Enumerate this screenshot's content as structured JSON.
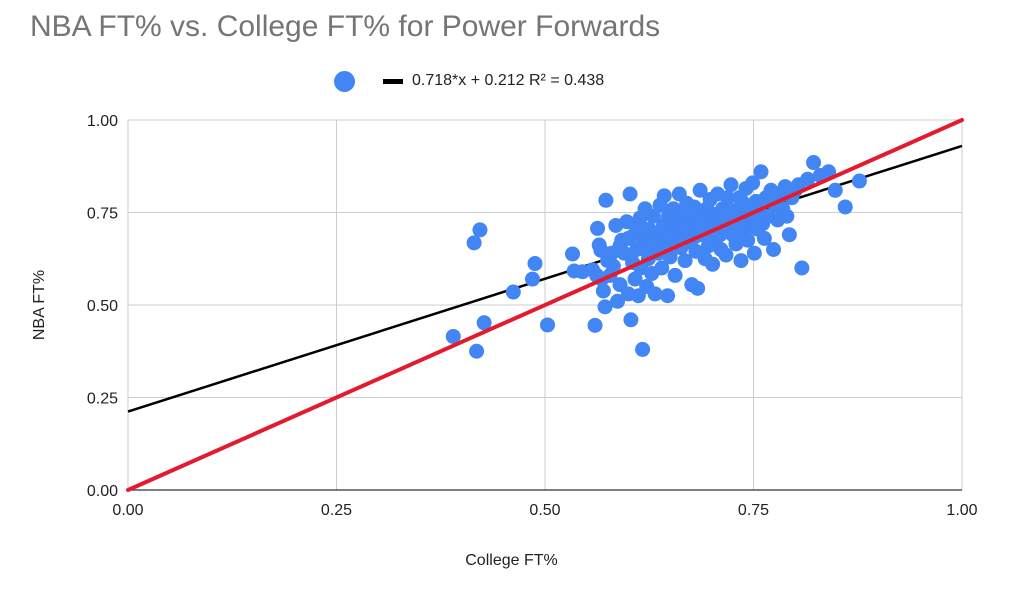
{
  "chart_data": {
    "type": "scatter",
    "title": "NBA FT% vs. College FT% for Power Forwards",
    "xlabel": "College FT%",
    "ylabel": "NBA FT%",
    "xlim": [
      0,
      1
    ],
    "ylim": [
      0,
      1
    ],
    "x_ticks": [
      "0.00",
      "0.25",
      "0.50",
      "0.75",
      "1.00"
    ],
    "y_ticks": [
      "0.00",
      "0.25",
      "0.50",
      "0.75",
      "1.00"
    ],
    "grid": true,
    "legend_position": "top",
    "legend_text": "0.718*x + 0.212 R² = 0.438",
    "colors": {
      "points": "#4285f4",
      "trendline": "#000000",
      "reference_line": "#e31b2f",
      "grid": "#cccccc"
    },
    "trendline": {
      "slope": 0.718,
      "intercept": 0.212,
      "r2": 0.438
    },
    "reference_line": {
      "slope": 1,
      "intercept": 0
    },
    "points": [
      [
        0.39,
        0.415
      ],
      [
        0.418,
        0.375
      ],
      [
        0.427,
        0.452
      ],
      [
        0.415,
        0.668
      ],
      [
        0.422,
        0.703
      ],
      [
        0.462,
        0.535
      ],
      [
        0.485,
        0.57
      ],
      [
        0.488,
        0.612
      ],
      [
        0.503,
        0.446
      ],
      [
        0.533,
        0.638
      ],
      [
        0.535,
        0.592
      ],
      [
        0.545,
        0.59
      ],
      [
        0.557,
        0.595
      ],
      [
        0.56,
        0.445
      ],
      [
        0.562,
        0.58
      ],
      [
        0.563,
        0.707
      ],
      [
        0.565,
        0.662
      ],
      [
        0.567,
        0.648
      ],
      [
        0.568,
        0.57
      ],
      [
        0.57,
        0.538
      ],
      [
        0.572,
        0.495
      ],
      [
        0.573,
        0.783
      ],
      [
        0.575,
        0.62
      ],
      [
        0.578,
        0.58
      ],
      [
        0.582,
        0.605
      ],
      [
        0.585,
        0.715
      ],
      [
        0.587,
        0.51
      ],
      [
        0.59,
        0.555
      ],
      [
        0.592,
        0.675
      ],
      [
        0.595,
        0.64
      ],
      [
        0.598,
        0.725
      ],
      [
        0.6,
        0.53
      ],
      [
        0.602,
        0.8
      ],
      [
        0.603,
        0.46
      ],
      [
        0.605,
        0.615
      ],
      [
        0.607,
        0.69
      ],
      [
        0.608,
        0.57
      ],
      [
        0.61,
        0.65
      ],
      [
        0.612,
        0.525
      ],
      [
        0.614,
        0.735
      ],
      [
        0.615,
        0.6
      ],
      [
        0.617,
        0.38
      ],
      [
        0.618,
        0.68
      ],
      [
        0.62,
        0.76
      ],
      [
        0.622,
        0.55
      ],
      [
        0.624,
        0.625
      ],
      [
        0.625,
        0.705
      ],
      [
        0.627,
        0.66
      ],
      [
        0.628,
        0.585
      ],
      [
        0.63,
        0.74
      ],
      [
        0.632,
        0.53
      ],
      [
        0.634,
        0.69
      ],
      [
        0.636,
        0.64
      ],
      [
        0.638,
        0.77
      ],
      [
        0.64,
        0.6
      ],
      [
        0.642,
        0.715
      ],
      [
        0.643,
        0.795
      ],
      [
        0.645,
        0.665
      ],
      [
        0.647,
        0.525
      ],
      [
        0.649,
        0.745
      ],
      [
        0.65,
        0.63
      ],
      [
        0.652,
        0.695
      ],
      [
        0.654,
        0.76
      ],
      [
        0.656,
        0.58
      ],
      [
        0.657,
        0.68
      ],
      [
        0.659,
        0.72
      ],
      [
        0.661,
        0.8
      ],
      [
        0.663,
        0.655
      ],
      [
        0.665,
        0.74
      ],
      [
        0.667,
        0.695
      ],
      [
        0.668,
        0.62
      ],
      [
        0.67,
        0.775
      ],
      [
        0.672,
        0.705
      ],
      [
        0.674,
        0.67
      ],
      [
        0.676,
        0.555
      ],
      [
        0.677,
        0.735
      ],
      [
        0.679,
        0.765
      ],
      [
        0.681,
        0.645
      ],
      [
        0.683,
        0.545
      ],
      [
        0.684,
        0.715
      ],
      [
        0.686,
        0.81
      ],
      [
        0.688,
        0.69
      ],
      [
        0.69,
        0.75
      ],
      [
        0.692,
        0.625
      ],
      [
        0.694,
        0.73
      ],
      [
        0.696,
        0.66
      ],
      [
        0.698,
        0.785
      ],
      [
        0.7,
        0.7
      ],
      [
        0.701,
        0.61
      ],
      [
        0.703,
        0.745
      ],
      [
        0.705,
        0.68
      ],
      [
        0.707,
        0.8
      ],
      [
        0.709,
        0.72
      ],
      [
        0.711,
        0.65
      ],
      [
        0.713,
        0.76
      ],
      [
        0.715,
        0.7
      ],
      [
        0.717,
        0.635
      ],
      [
        0.719,
        0.79
      ],
      [
        0.721,
        0.73
      ],
      [
        0.723,
        0.825
      ],
      [
        0.725,
        0.69
      ],
      [
        0.727,
        0.755
      ],
      [
        0.729,
        0.665
      ],
      [
        0.731,
        0.72
      ],
      [
        0.733,
        0.79
      ],
      [
        0.735,
        0.62
      ],
      [
        0.737,
        0.745
      ],
      [
        0.739,
        0.7
      ],
      [
        0.741,
        0.815
      ],
      [
        0.743,
        0.675
      ],
      [
        0.745,
        0.76
      ],
      [
        0.747,
        0.725
      ],
      [
        0.749,
        0.83
      ],
      [
        0.751,
        0.64
      ],
      [
        0.753,
        0.78
      ],
      [
        0.755,
        0.705
      ],
      [
        0.757,
        0.755
      ],
      [
        0.759,
        0.86
      ],
      [
        0.761,
        0.72
      ],
      [
        0.763,
        0.68
      ],
      [
        0.765,
        0.79
      ],
      [
        0.768,
        0.74
      ],
      [
        0.771,
        0.81
      ],
      [
        0.774,
        0.65
      ],
      [
        0.776,
        0.77
      ],
      [
        0.779,
        0.73
      ],
      [
        0.782,
        0.8
      ],
      [
        0.785,
        0.76
      ],
      [
        0.788,
        0.82
      ],
      [
        0.79,
        0.74
      ],
      [
        0.793,
        0.69
      ],
      [
        0.796,
        0.79
      ],
      [
        0.8,
        0.81
      ],
      [
        0.804,
        0.825
      ],
      [
        0.808,
        0.6
      ],
      [
        0.815,
        0.84
      ],
      [
        0.822,
        0.885
      ],
      [
        0.83,
        0.85
      ],
      [
        0.84,
        0.86
      ],
      [
        0.848,
        0.81
      ],
      [
        0.86,
        0.765
      ],
      [
        0.877,
        0.835
      ],
      [
        0.648,
        0.74
      ],
      [
        0.655,
        0.74
      ],
      [
        0.662,
        0.72
      ],
      [
        0.668,
        0.755
      ],
      [
        0.675,
        0.72
      ],
      [
        0.682,
        0.74
      ],
      [
        0.688,
        0.725
      ],
      [
        0.694,
        0.76
      ],
      [
        0.7,
        0.735
      ],
      [
        0.706,
        0.715
      ],
      [
        0.712,
        0.745
      ],
      [
        0.718,
        0.725
      ],
      [
        0.724,
        0.75
      ],
      [
        0.73,
        0.7
      ],
      [
        0.736,
        0.78
      ],
      [
        0.742,
        0.74
      ],
      [
        0.66,
        0.69
      ],
      [
        0.67,
        0.7
      ],
      [
        0.68,
        0.685
      ],
      [
        0.69,
        0.71
      ],
      [
        0.7,
        0.67
      ],
      [
        0.71,
        0.69
      ],
      [
        0.72,
        0.71
      ],
      [
        0.73,
        0.68
      ],
      [
        0.64,
        0.7
      ],
      [
        0.65,
        0.68
      ],
      [
        0.63,
        0.67
      ],
      [
        0.62,
        0.65
      ],
      [
        0.61,
        0.71
      ],
      [
        0.6,
        0.68
      ],
      [
        0.59,
        0.66
      ],
      [
        0.58,
        0.64
      ]
    ]
  }
}
